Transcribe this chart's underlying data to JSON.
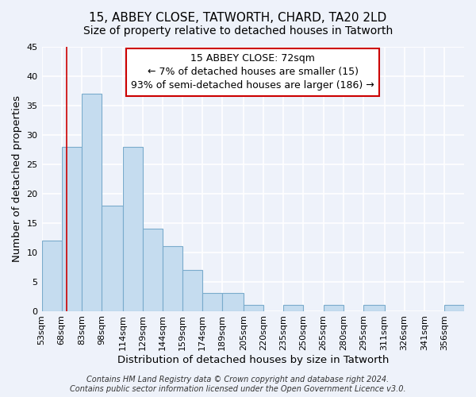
{
  "title": "15, ABBEY CLOSE, TATWORTH, CHARD, TA20 2LD",
  "subtitle": "Size of property relative to detached houses in Tatworth",
  "xlabel": "Distribution of detached houses by size in Tatworth",
  "ylabel": "Number of detached properties",
  "bar_values": [
    12,
    28,
    37,
    18,
    28,
    14,
    11,
    7,
    3,
    3,
    1,
    0,
    1,
    0,
    1,
    0,
    1,
    0,
    0,
    0,
    1
  ],
  "bin_labels": [
    "53sqm",
    "68sqm",
    "83sqm",
    "98sqm",
    "114sqm",
    "129sqm",
    "144sqm",
    "159sqm",
    "174sqm",
    "189sqm",
    "205sqm",
    "220sqm",
    "235sqm",
    "250sqm",
    "265sqm",
    "280sqm",
    "295sqm",
    "311sqm",
    "326sqm",
    "341sqm",
    "356sqm"
  ],
  "bar_edges": [
    53,
    68,
    83,
    98,
    114,
    129,
    144,
    159,
    174,
    189,
    205,
    220,
    235,
    250,
    265,
    280,
    295,
    311,
    326,
    341,
    356,
    371
  ],
  "bar_color": "#c5dcef",
  "bar_edge_color": "#7aabcc",
  "property_line_x": 72,
  "property_line_color": "#cc0000",
  "annotation_title": "15 ABBEY CLOSE: 72sqm",
  "annotation_line1": "← 7% of detached houses are smaller (15)",
  "annotation_line2": "93% of semi-detached houses are larger (186) →",
  "annotation_box_color": "#cc0000",
  "ylim": [
    0,
    45
  ],
  "yticks": [
    0,
    5,
    10,
    15,
    20,
    25,
    30,
    35,
    40,
    45
  ],
  "footer1": "Contains HM Land Registry data © Crown copyright and database right 2024.",
  "footer2": "Contains public sector information licensed under the Open Government Licence v3.0.",
  "bg_color": "#eef2fa",
  "grid_color": "#ffffff",
  "title_fontsize": 11,
  "subtitle_fontsize": 10,
  "axis_label_fontsize": 9.5,
  "tick_fontsize": 8,
  "footer_fontsize": 7,
  "annotation_fontsize": 9
}
